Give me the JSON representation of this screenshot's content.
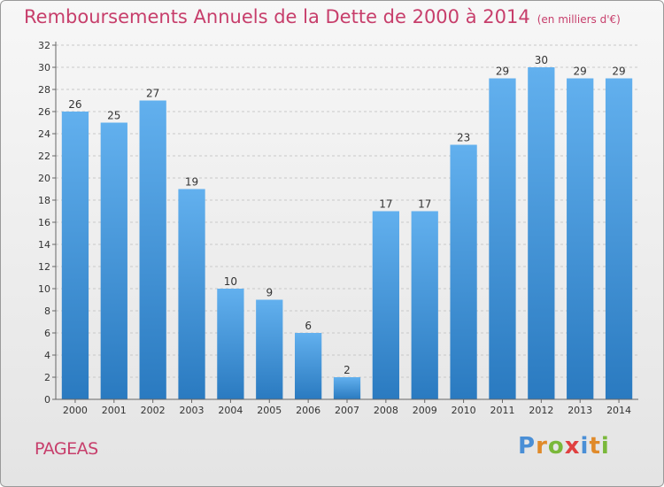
{
  "title": "Remboursements Annuels de la Dette de 2000 à 2014",
  "unit": "(en milliers d'€)",
  "commune": "PAGEAS",
  "logo": {
    "letters": [
      "P",
      "r",
      "o",
      "x",
      "i",
      "t",
      "i"
    ],
    "colors": [
      "#4a8fd6",
      "#e08a2a",
      "#7ab83a",
      "#e04040",
      "#4a8fd6",
      "#e08a2a",
      "#7ab83a"
    ]
  },
  "chart_data": {
    "type": "bar",
    "title": "Remboursements Annuels de la Dette de 2000 à 2014",
    "categories": [
      "2000",
      "2001",
      "2002",
      "2003",
      "2004",
      "2005",
      "2006",
      "2007",
      "2008",
      "2009",
      "2010",
      "2011",
      "2012",
      "2013",
      "2014"
    ],
    "values": [
      26,
      25,
      27,
      19,
      10,
      9,
      6,
      2,
      17,
      17,
      23,
      29,
      30,
      29,
      29
    ],
    "yticks": [
      0,
      2,
      4,
      6,
      8,
      10,
      12,
      14,
      16,
      18,
      20,
      22,
      24,
      26,
      28,
      30,
      32
    ],
    "ylim": [
      0,
      32
    ],
    "bar_color": "#3d8fd6",
    "grid": true
  }
}
